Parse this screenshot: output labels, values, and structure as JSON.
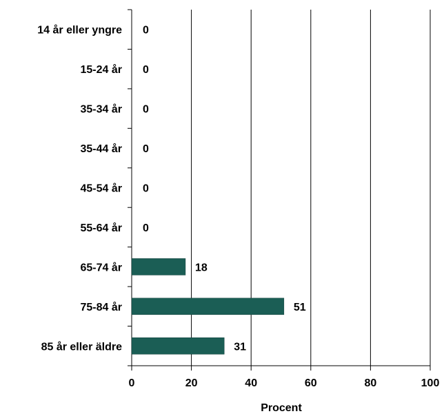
{
  "chart_data": {
    "type": "bar",
    "orientation": "horizontal",
    "categories": [
      "14 år eller yngre",
      "15-24 år",
      "35-34 år",
      "35-44 år",
      "45-54 år",
      "55-64 år",
      "65-74 år",
      "75-84 år",
      "85 år eller äldre"
    ],
    "values": [
      0,
      0,
      0,
      0,
      0,
      0,
      18,
      51,
      31
    ],
    "xlabel": "Procent",
    "ylabel": "",
    "xlim": [
      0,
      100
    ],
    "xticks": [
      0,
      20,
      40,
      60,
      80,
      100
    ],
    "grid": "vertical",
    "data_labels": true,
    "bar_color": "#1b5e55"
  }
}
